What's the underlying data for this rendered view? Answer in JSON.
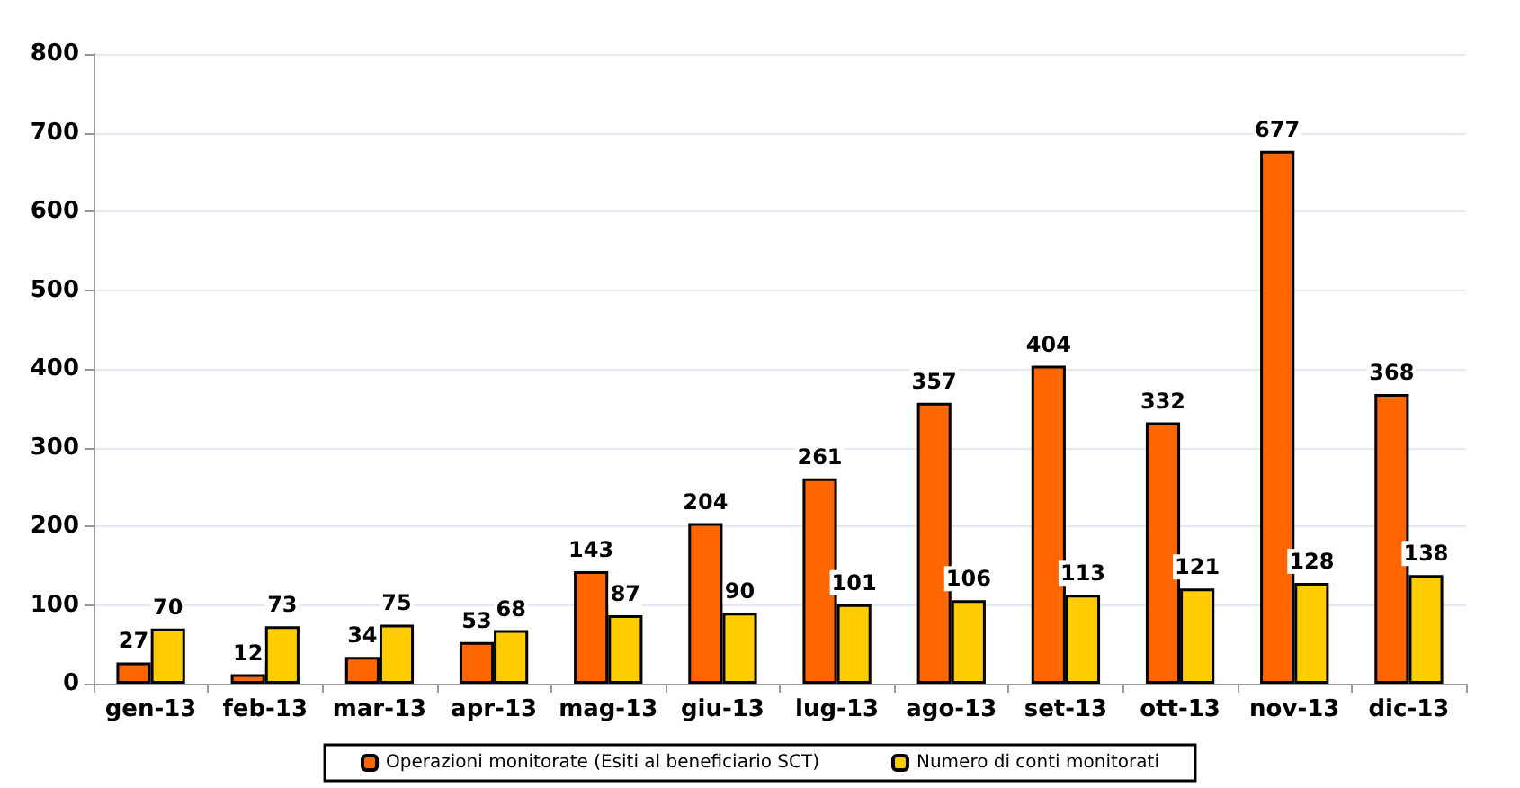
{
  "chart_data": {
    "type": "bar",
    "categories": [
      "gen-13",
      "feb-13",
      "mar-13",
      "apr-13",
      "mag-13",
      "giu-13",
      "lug-13",
      "ago-13",
      "set-13",
      "ott-13",
      "nov-13",
      "dic-13"
    ],
    "series": [
      {
        "name": "Operazioni monitorate (Esiti al beneficiario SCT)",
        "color": "#ff6600",
        "values": [
          27,
          12,
          34,
          53,
          143,
          204,
          261,
          357,
          404,
          332,
          677,
          368
        ]
      },
      {
        "name": "Numero di conti monitorati",
        "color": "#ffcc00",
        "values": [
          70,
          73,
          75,
          68,
          87,
          90,
          101,
          106,
          113,
          121,
          128,
          138
        ]
      }
    ],
    "ylim": [
      0,
      800
    ],
    "yticks": [
      0,
      100,
      200,
      300,
      400,
      500,
      600,
      700,
      800
    ],
    "grid": "y",
    "legend": "bottom",
    "data_labels": true
  }
}
